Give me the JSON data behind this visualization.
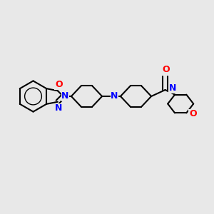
{
  "bg_color": "#e8e8e8",
  "bond_color": "#000000",
  "N_color": "#0000ff",
  "O_color": "#ff0000",
  "bond_width": 1.5,
  "dbo": 0.012,
  "figsize": [
    3.0,
    3.0
  ],
  "dpi": 100,
  "xlim": [
    0,
    10
  ],
  "ylim": [
    0,
    10
  ]
}
